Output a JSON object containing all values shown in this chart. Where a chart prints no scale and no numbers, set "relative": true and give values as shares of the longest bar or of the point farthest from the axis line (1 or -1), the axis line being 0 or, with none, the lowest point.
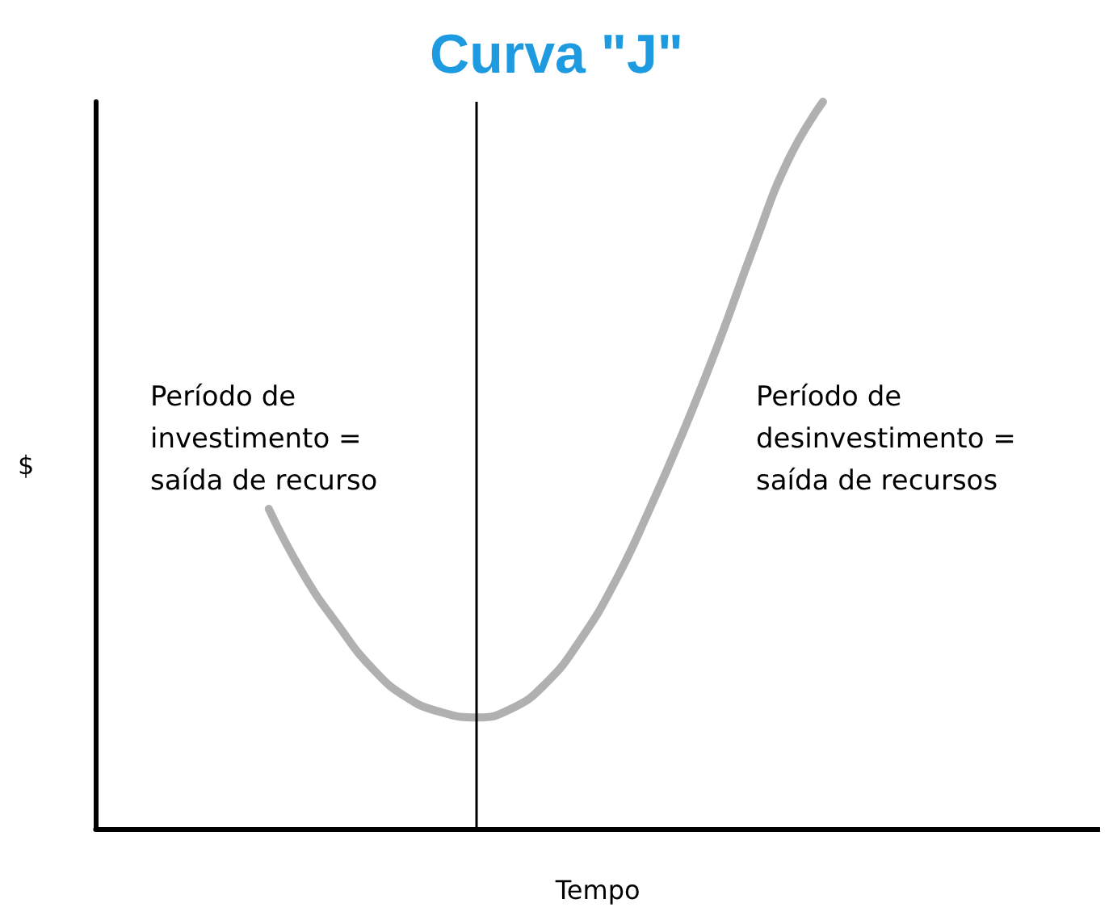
{
  "chart_data": {
    "type": "line",
    "title": "Curva \"J\"",
    "xlabel": "Tempo",
    "ylabel": "$",
    "relative": true,
    "marker": "none",
    "line_style": "solid",
    "categories": [
      null,
      null,
      null,
      null,
      null,
      null,
      null,
      null,
      null,
      null,
      null,
      null,
      null,
      null,
      null,
      null,
      null,
      null,
      null,
      null,
      null,
      null,
      null,
      null,
      null,
      null,
      null,
      null,
      null,
      null
    ],
    "series": [
      {
        "color": "#b0b0b0",
        "values": [
          null,
          null,
          null,
          null,
          null,
          0.44,
          0.35,
          0.28,
          0.22,
          0.18,
          0.16,
          0.153,
          0.165,
          0.2,
          0.26,
          0.34,
          0.44,
          0.55,
          0.67,
          0.8,
          0.92,
          1,
          null,
          null,
          null,
          null,
          null,
          null,
          null,
          null
        ]
      }
    ],
    "annotations": [
      "Período de\ninvestimento =\nsaída de recurso",
      "Período de\ndesinvestimento =\nsaída de recursos"
    ]
  }
}
